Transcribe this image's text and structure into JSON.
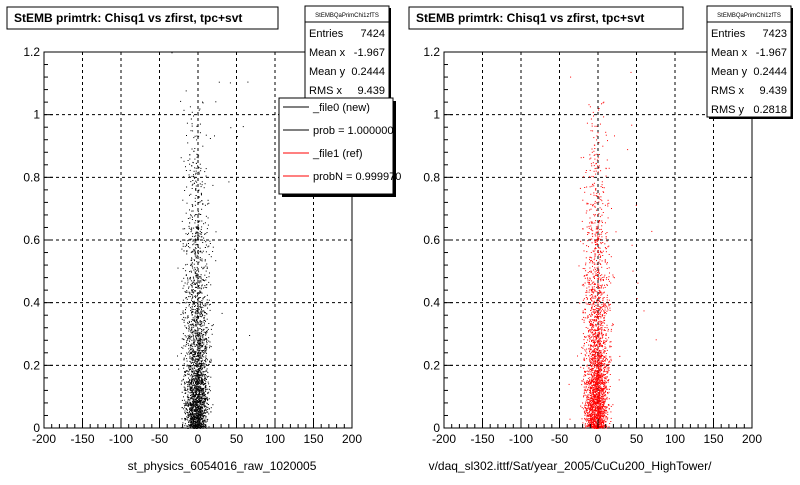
{
  "chart_data": [
    {
      "type": "scatter",
      "title": "StEMB primtrk: Chisq1 vs zfirst, tpc+svt",
      "xlabel": "st_physics_6054016_raw_1020005",
      "ylabel": "",
      "xlim": [
        -200,
        200
      ],
      "ylim": [
        0,
        1.2
      ],
      "x_ticks": [
        "-200",
        "-150",
        "-100",
        "-50",
        "0",
        "50",
        "100",
        "150",
        "200"
      ],
      "y_ticks": [
        "0",
        "0.2",
        "0.4",
        "0.6",
        "0.8",
        "1",
        "1.2"
      ],
      "grid": true,
      "marker_color": "#000000",
      "stats": {
        "name": "StEMBQaPrimChi1zfTS",
        "rows": [
          {
            "label": "Entries",
            "value": "7424"
          },
          {
            "label": "Mean x",
            "value": "-1.967"
          },
          {
            "label": "Mean y",
            "value": "0.2444"
          },
          {
            "label": "RMS x",
            "value": "9.439"
          }
        ]
      },
      "legend": {
        "placement": "top-right",
        "entries": [
          {
            "label": "_file0 (new)",
            "color": "#000000"
          },
          {
            "label": "prob = 1.000000",
            "color": "#000000"
          },
          {
            "label": "_file1 (ref)",
            "color": "#ff0000"
          },
          {
            "label": "probN = 0.999970",
            "color": "#ff0000"
          }
        ]
      }
    },
    {
      "type": "scatter",
      "title": "StEMB primtrk: Chisq1 vs zfirst, tpc+svt",
      "xlabel": "v/daq_sl302.ittf/Sat/year_2005/CuCu200_HighTower/",
      "ylabel": "",
      "xlim": [
        -200,
        200
      ],
      "ylim": [
        0,
        1.2
      ],
      "x_ticks": [
        "-200",
        "-150",
        "-100",
        "-50",
        "0",
        "50",
        "100",
        "150",
        "200"
      ],
      "y_ticks": [
        "0",
        "0.2",
        "0.4",
        "0.6",
        "0.8",
        "1",
        "1.2"
      ],
      "grid": true,
      "marker_color": "#ff0000",
      "stats": {
        "name": "StEMBQaPrimChi1zfTS",
        "rows": [
          {
            "label": "Entries",
            "value": "7423"
          },
          {
            "label": "Mean x",
            "value": "-1.967"
          },
          {
            "label": "Mean y",
            "value": "0.2444"
          },
          {
            "label": "RMS x",
            "value": "9.439"
          },
          {
            "label": "RMS y",
            "value": "0.2818"
          }
        ]
      }
    }
  ]
}
